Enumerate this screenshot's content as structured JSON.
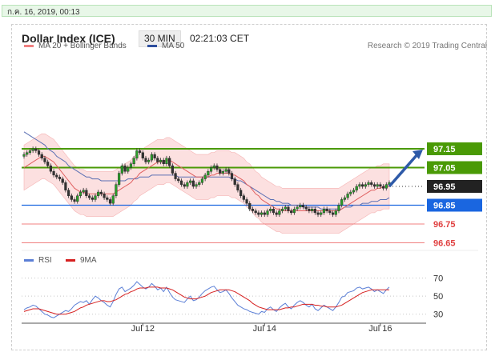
{
  "timestamp": "ก.ค. 16, 2019, 00:13",
  "header": {
    "title": "Dollar Index (ICE)",
    "timeframe": "30 MIN",
    "time": "02:21:03 CET"
  },
  "legend": {
    "ma20": "MA 20 + Bollinger Bands",
    "ma50": "MA 50",
    "ma20_color": "#f08080",
    "ma50_color": "#2e4f9e"
  },
  "credit": "Research © 2019 Trading Central",
  "rsi_legend": {
    "rsi": "RSI",
    "ma9": "9MA",
    "rsi_color": "#5b7fd6",
    "ma9_color": "#d62020"
  },
  "chart_data": [
    {
      "type": "candlestick",
      "title": "Dollar Index (ICE)",
      "x_tick_labels": [
        "Jul 12",
        "Jul 14",
        "Jul 16"
      ],
      "ylim": [
        96.6,
        97.3
      ],
      "levels": [
        {
          "value": 97.15,
          "label": "97.15",
          "kind": "target-resistance",
          "color": "#4a9a06"
        },
        {
          "value": 97.05,
          "label": "97.05",
          "kind": "resistance",
          "color": "#4a9a06"
        },
        {
          "value": 96.95,
          "label": "96.95",
          "kind": "last-price",
          "color": "#222222"
        },
        {
          "value": 96.85,
          "label": "96.85",
          "kind": "pivot",
          "color": "#1a66e0"
        },
        {
          "value": 96.75,
          "label": "96.75",
          "kind": "support",
          "color": "#e04040"
        },
        {
          "value": 96.65,
          "label": "96.65",
          "kind": "support",
          "color": "#e04040"
        }
      ],
      "close": [
        97.12,
        97.13,
        97.14,
        97.15,
        97.14,
        97.12,
        97.1,
        97.08,
        97.06,
        97.03,
        97.01,
        97.0,
        96.99,
        96.97,
        96.93,
        96.9,
        96.88,
        96.87,
        96.9,
        96.92,
        96.93,
        96.9,
        96.89,
        96.88,
        96.9,
        96.92,
        96.91,
        96.89,
        96.88,
        96.86,
        96.9,
        96.96,
        97.02,
        97.06,
        97.03,
        97.05,
        97.07,
        97.1,
        97.14,
        97.13,
        97.1,
        97.08,
        97.09,
        97.12,
        97.1,
        97.08,
        97.09,
        97.07,
        97.1,
        97.06,
        97.02,
        96.99,
        96.98,
        96.96,
        96.95,
        96.97,
        96.98,
        96.95,
        96.96,
        96.97,
        96.99,
        97.01,
        97.03,
        97.05,
        97.06,
        97.04,
        97.02,
        97.03,
        97.04,
        97.02,
        96.99,
        96.96,
        96.93,
        96.9,
        96.88,
        96.86,
        96.83,
        96.82,
        96.81,
        96.8,
        96.81,
        96.8,
        96.82,
        96.83,
        96.81,
        96.8,
        96.82,
        96.83,
        96.84,
        96.82,
        96.81,
        96.83,
        96.84,
        96.85,
        96.84,
        96.83,
        96.82,
        96.83,
        96.81,
        96.8,
        96.81,
        96.83,
        96.82,
        96.81,
        96.8,
        96.82,
        96.85,
        96.88,
        96.89,
        96.91,
        96.92,
        96.93,
        96.95,
        96.96,
        96.95,
        96.96,
        96.97,
        96.96,
        96.95,
        96.96,
        96.95,
        96.94,
        96.96,
        96.97
      ],
      "indicators": {
        "ma20": [
          97.05,
          97.06,
          97.07,
          97.08,
          97.09,
          97.1,
          97.11,
          97.11,
          97.1,
          97.09,
          97.08,
          97.06,
          97.04,
          97.02,
          97.0,
          96.98,
          96.96,
          96.94,
          96.93,
          96.92,
          96.92,
          96.91,
          96.91,
          96.91,
          96.91,
          96.91,
          96.91,
          96.91,
          96.91,
          96.91,
          96.91,
          96.92,
          96.93,
          96.94,
          96.95,
          96.96,
          96.97,
          96.99,
          97.0,
          97.02,
          97.03,
          97.04,
          97.05,
          97.06,
          97.07,
          97.08,
          97.08,
          97.08,
          97.09,
          97.09,
          97.08,
          97.07,
          97.06,
          97.05,
          97.04,
          97.03,
          97.02,
          97.01,
          97.0,
          97.0,
          97.0,
          97.0,
          97.0,
          97.01,
          97.01,
          97.02,
          97.02,
          97.02,
          97.02,
          97.02,
          97.01,
          97.01,
          97.0,
          96.99,
          96.98,
          96.96,
          96.95,
          96.93,
          96.91,
          96.9,
          96.88,
          96.87,
          96.86,
          96.85,
          96.84,
          96.83,
          96.83,
          96.82,
          96.82,
          96.82,
          96.82,
          96.82,
          96.82,
          96.82,
          96.82,
          96.82,
          96.82,
          96.82,
          96.82,
          96.82,
          96.82,
          96.82,
          96.82,
          96.82,
          96.82,
          96.82,
          96.82,
          96.83,
          96.84,
          96.85,
          96.86,
          96.87,
          96.88,
          96.89,
          96.9,
          96.91,
          96.92,
          96.93,
          96.93,
          96.94,
          96.94,
          96.95,
          96.95,
          96.95
        ],
        "ma50": [
          97.24,
          97.23,
          97.22,
          97.21,
          97.2,
          97.19,
          97.18,
          97.17,
          97.15,
          97.14,
          97.13,
          97.11,
          97.1,
          97.09,
          97.08,
          97.06,
          97.05,
          97.04,
          97.03,
          97.02,
          97.01,
          97.0,
          97.0,
          96.99,
          96.99,
          96.99,
          96.98,
          96.98,
          96.98,
          96.98,
          96.98,
          96.98,
          96.98,
          96.98,
          96.98,
          96.99,
          96.99,
          96.99,
          96.99,
          97.0,
          97.0,
          97.0,
          97.0,
          97.01,
          97.01,
          97.01,
          97.01,
          97.01,
          97.01,
          97.01,
          97.01,
          97.01,
          97.0,
          97.0,
          97.0,
          97.0,
          97.0,
          97.0,
          97.0,
          97.0,
          97.0,
          97.0,
          97.0,
          97.0,
          97.0,
          97.0,
          97.0,
          97.0,
          97.0,
          97.0,
          96.99,
          96.99,
          96.98,
          96.98,
          96.97,
          96.96,
          96.95,
          96.94,
          96.93,
          96.92,
          96.91,
          96.9,
          96.89,
          96.88,
          96.88,
          96.87,
          96.87,
          96.86,
          96.86,
          96.86,
          96.85,
          96.85,
          96.85,
          96.85,
          96.84,
          96.84,
          96.84,
          96.84,
          96.84,
          96.84,
          96.83,
          96.83,
          96.83,
          96.83,
          96.83,
          96.83,
          96.83,
          96.83,
          96.84,
          96.84,
          96.84,
          96.85,
          96.85,
          96.85,
          96.86,
          96.86,
          96.86,
          96.87,
          96.87,
          96.87,
          96.88,
          96.88,
          96.88,
          96.89
        ]
      },
      "bollinger_band_width": 0.12,
      "forecast_arrow": {
        "from": 96.95,
        "to": 97.15
      }
    },
    {
      "type": "line",
      "title": "RSI",
      "yticks": [
        30,
        50,
        70
      ],
      "ylim": [
        20,
        75
      ],
      "series": [
        {
          "name": "RSI",
          "values": [
            35,
            37,
            38,
            40,
            39,
            36,
            33,
            30,
            29,
            27,
            26,
            28,
            30,
            32,
            34,
            33,
            36,
            40,
            42,
            44,
            43,
            45,
            41,
            46,
            50,
            48,
            45,
            43,
            40,
            38,
            44,
            52,
            58,
            60,
            55,
            57,
            59,
            62,
            66,
            63,
            60,
            58,
            60,
            64,
            61,
            57,
            59,
            55,
            60,
            54,
            49,
            46,
            45,
            44,
            43,
            47,
            50,
            45,
            46,
            49,
            53,
            56,
            58,
            60,
            61,
            57,
            54,
            55,
            57,
            53,
            48,
            44,
            40,
            38,
            36,
            35,
            33,
            32,
            31,
            30,
            33,
            32,
            36,
            38,
            35,
            33,
            37,
            40,
            42,
            38,
            36,
            40,
            43,
            45,
            43,
            40,
            38,
            41,
            36,
            34,
            37,
            40,
            38,
            36,
            34,
            38,
            43,
            49,
            50,
            54,
            55,
            56,
            59,
            60,
            58,
            59,
            60,
            58,
            55,
            57,
            55,
            53,
            57,
            60
          ]
        },
        {
          "name": "9MA",
          "values": [
            33,
            34,
            35,
            36,
            36,
            36,
            35,
            34,
            33,
            32,
            31,
            30,
            30,
            30,
            30,
            31,
            32,
            33,
            35,
            37,
            38,
            40,
            41,
            42,
            43,
            44,
            45,
            45,
            44,
            44,
            45,
            46,
            48,
            50,
            52,
            53,
            55,
            56,
            58,
            59,
            59,
            59,
            60,
            60,
            60,
            60,
            59,
            59,
            59,
            58,
            57,
            55,
            53,
            51,
            49,
            48,
            47,
            47,
            47,
            48,
            49,
            50,
            52,
            54,
            55,
            56,
            57,
            57,
            57,
            57,
            56,
            55,
            53,
            51,
            49,
            47,
            45,
            42,
            40,
            38,
            37,
            36,
            35,
            35,
            35,
            35,
            35,
            36,
            37,
            37,
            38,
            38,
            39,
            40,
            41,
            41,
            41,
            41,
            40,
            40,
            39,
            39,
            38,
            38,
            38,
            38,
            39,
            40,
            42,
            44,
            46,
            48,
            50,
            52,
            54,
            55,
            56,
            57,
            57,
            57,
            57,
            57,
            57,
            57
          ]
        }
      ]
    }
  ]
}
